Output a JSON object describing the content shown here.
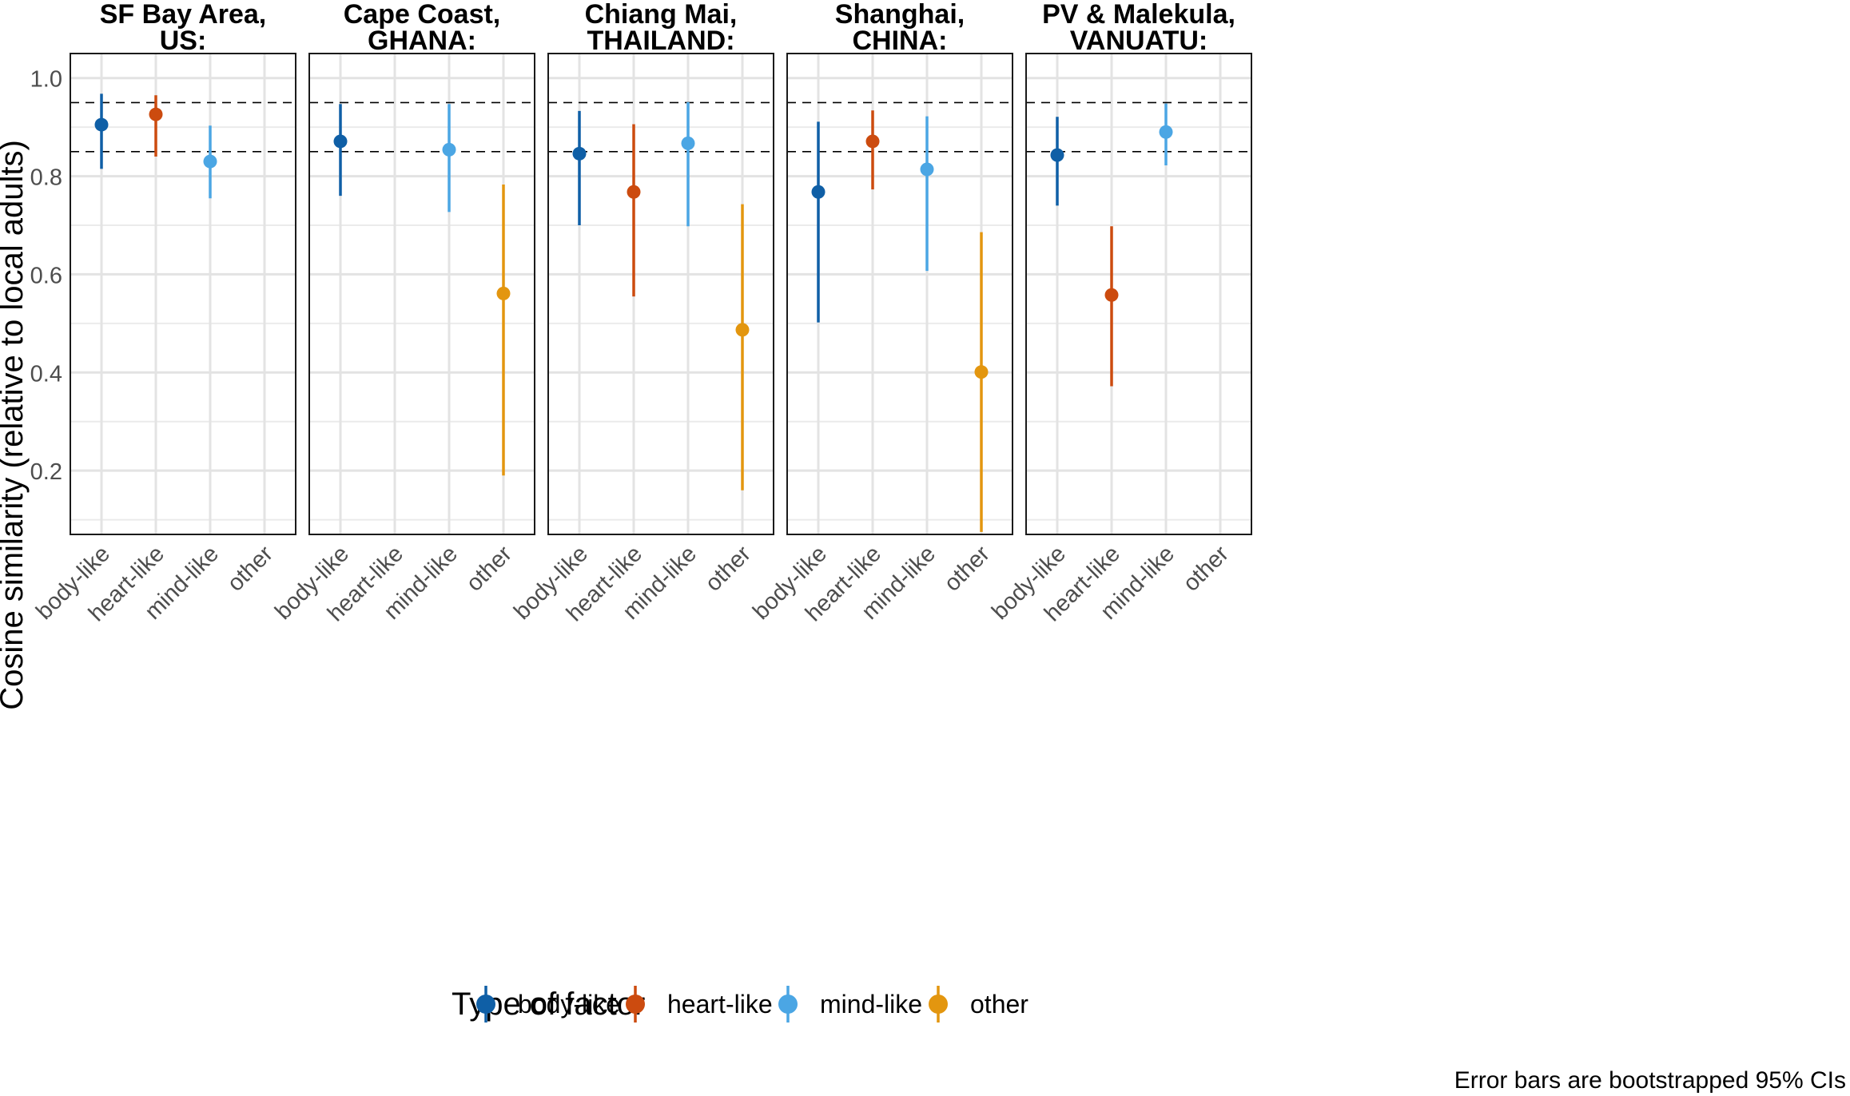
{
  "chart_data": {
    "type": "pointrange",
    "ylabel": "Cosine similarity (relative to local adults)",
    "ylim": [
      0.07,
      1.05
    ],
    "yticks": [
      0.2,
      0.4,
      0.6,
      0.8,
      1.0
    ],
    "ytick_labels": [
      "0.2",
      "0.4",
      "0.6",
      "0.8",
      "1.0"
    ],
    "reference_lines": [
      0.85,
      0.95
    ],
    "categories": [
      "body-like",
      "heart-like",
      "mind-like",
      "other"
    ],
    "legend": {
      "title": "Type of factor",
      "placement": "bottom",
      "items": [
        "body-like",
        "heart-like",
        "mind-like",
        "other"
      ]
    },
    "series_colors": {
      "body-like": "#0F5FA6",
      "heart-like": "#CC4B0F",
      "mind-like": "#4BA6E4",
      "other": "#E3960F"
    },
    "note": "Error bars are bootstrapped 95% CIs",
    "panels": [
      {
        "title_line1": "SF Bay Area,",
        "title_line2": "US:",
        "points": [
          {
            "factor": "body-like",
            "value": 0.905,
            "lower": 0.815,
            "upper": 0.968
          },
          {
            "factor": "heart-like",
            "value": 0.926,
            "lower": 0.84,
            "upper": 0.965
          },
          {
            "factor": "mind-like",
            "value": 0.83,
            "lower": 0.755,
            "upper": 0.903
          }
        ]
      },
      {
        "title_line1": "Cape Coast,",
        "title_line2": "GHANA:",
        "points": [
          {
            "factor": "body-like",
            "value": 0.871,
            "lower": 0.76,
            "upper": 0.947
          },
          {
            "factor": "mind-like",
            "value": 0.854,
            "lower": 0.727,
            "upper": 0.947
          },
          {
            "factor": "other",
            "value": 0.561,
            "lower": 0.19,
            "upper": 0.783
          }
        ]
      },
      {
        "title_line1": "Chiang Mai,",
        "title_line2": "THAILAND:",
        "points": [
          {
            "factor": "body-like",
            "value": 0.846,
            "lower": 0.7,
            "upper": 0.933
          },
          {
            "factor": "heart-like",
            "value": 0.768,
            "lower": 0.555,
            "upper": 0.906
          },
          {
            "factor": "mind-like",
            "value": 0.867,
            "lower": 0.698,
            "upper": 0.951
          },
          {
            "factor": "other",
            "value": 0.487,
            "lower": 0.16,
            "upper": 0.743
          }
        ]
      },
      {
        "title_line1": "Shanghai,",
        "title_line2": "CHINA:",
        "points": [
          {
            "factor": "body-like",
            "value": 0.768,
            "lower": 0.502,
            "upper": 0.911
          },
          {
            "factor": "heart-like",
            "value": 0.871,
            "lower": 0.773,
            "upper": 0.934
          },
          {
            "factor": "mind-like",
            "value": 0.814,
            "lower": 0.607,
            "upper": 0.922
          },
          {
            "factor": "other",
            "value": 0.401,
            "lower": 0.075,
            "upper": 0.686
          }
        ]
      },
      {
        "title_line1": "PV & Malekula,",
        "title_line2": "VANUATU:",
        "points": [
          {
            "factor": "body-like",
            "value": 0.843,
            "lower": 0.74,
            "upper": 0.921
          },
          {
            "factor": "heart-like",
            "value": 0.558,
            "lower": 0.372,
            "upper": 0.698
          },
          {
            "factor": "mind-like",
            "value": 0.89,
            "lower": 0.822,
            "upper": 0.948
          }
        ]
      }
    ]
  }
}
